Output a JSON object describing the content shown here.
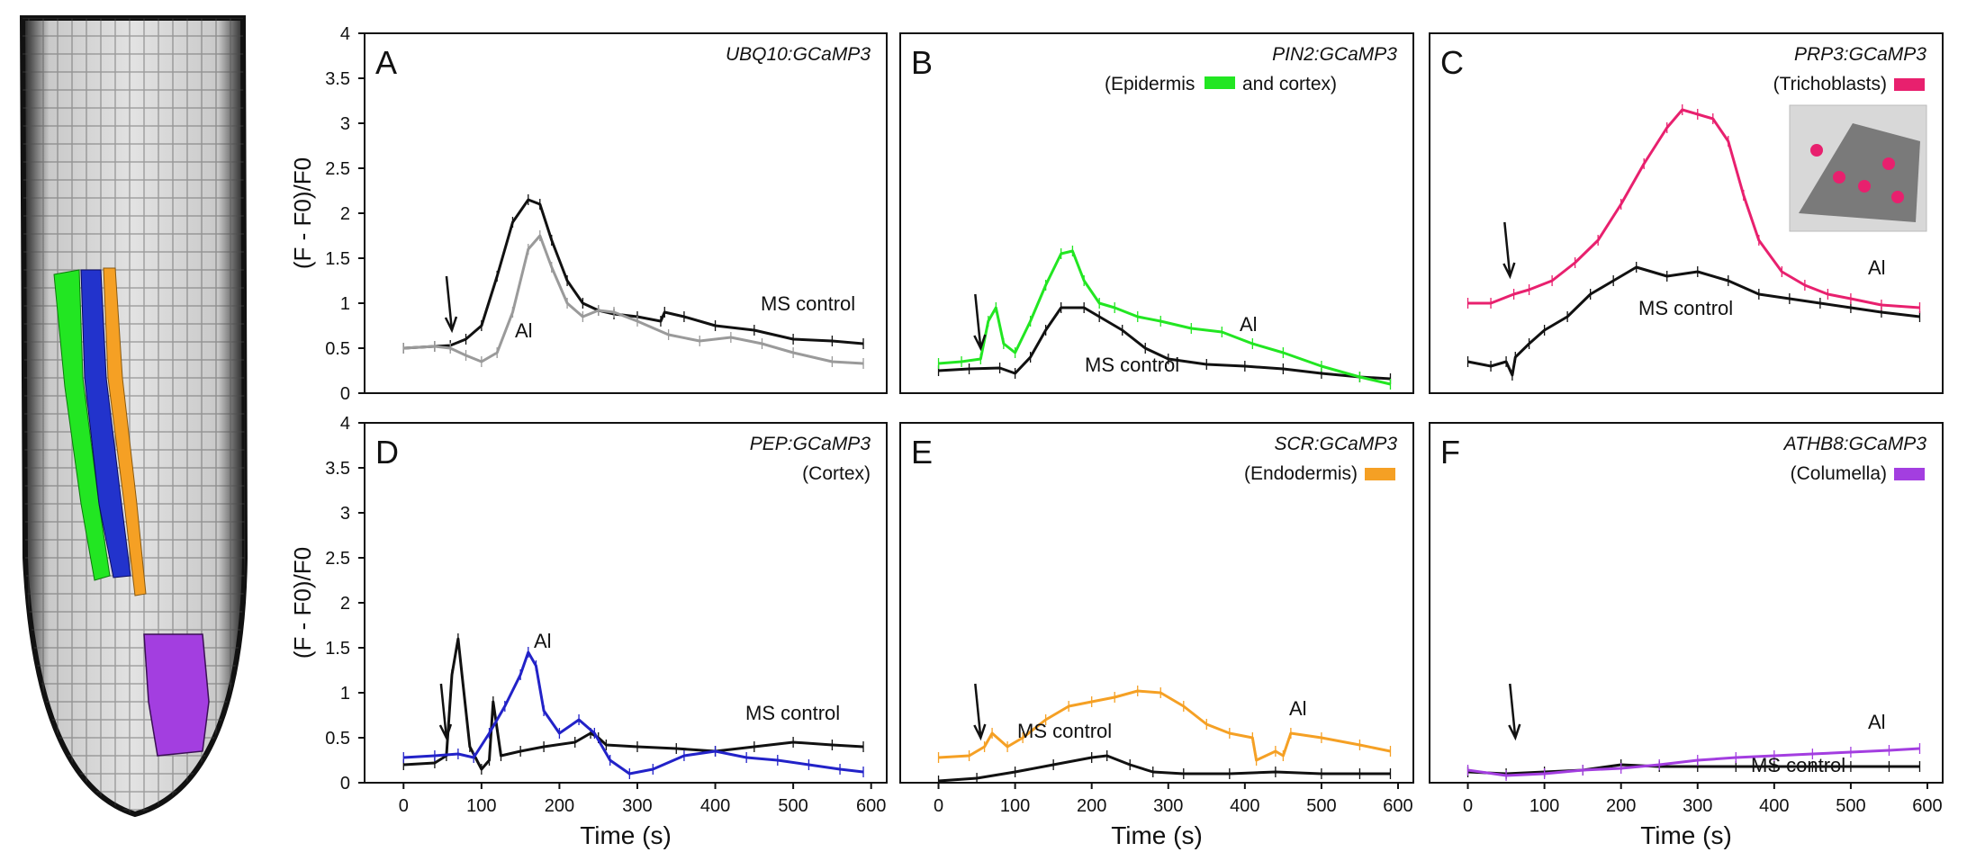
{
  "colors": {
    "black": "#111111",
    "gray": "#9a9a9a",
    "green": "#22e622",
    "pink": "#e8206e",
    "blue": "#2222c8",
    "orange": "#f5a024",
    "purple": "#a33ee0",
    "root_dark": "#222222",
    "root_light": "#d8d8d8"
  },
  "figure": {
    "y_axis_label": "(F - F0)/F0",
    "x_axis_label": "Time (s)",
    "y_ticks": [
      "0",
      "0.5",
      "1",
      "1.5",
      "2",
      "2.5",
      "3",
      "3.5",
      "4"
    ],
    "x_ticks": [
      "0",
      "100",
      "200",
      "300",
      "400",
      "500",
      "600"
    ]
  },
  "root_image": {
    "description_icon": "root-tip-microscopy-icon",
    "tissue_colors": [
      "green",
      "blue",
      "orange",
      "purple"
    ]
  },
  "chart_data": [
    {
      "type": "line",
      "panel": "A",
      "title": "UBQ10:GCaMP3",
      "subtitle": "",
      "xlabel": "Time (s)",
      "ylabel": "(F - F0)/F0",
      "xlim": [
        -50,
        620
      ],
      "ylim": [
        0,
        4
      ],
      "arrow_at": 62,
      "series": [
        {
          "name": "MS control",
          "color_key": "black",
          "label": "MS control",
          "x": [
            0,
            40,
            60,
            80,
            100,
            120,
            140,
            160,
            175,
            190,
            210,
            230,
            250,
            270,
            300,
            330,
            335,
            360,
            400,
            450,
            500,
            550,
            590
          ],
          "y": [
            0.5,
            0.52,
            0.53,
            0.6,
            0.75,
            1.3,
            1.9,
            2.15,
            2.1,
            1.7,
            1.25,
            1.0,
            0.92,
            0.88,
            0.85,
            0.8,
            0.9,
            0.85,
            0.75,
            0.7,
            0.6,
            0.58,
            0.55
          ]
        },
        {
          "name": "Al",
          "color_key": "gray",
          "label": "Al",
          "x": [
            0,
            40,
            60,
            80,
            100,
            120,
            140,
            160,
            175,
            190,
            210,
            230,
            250,
            270,
            300,
            340,
            380,
            420,
            460,
            500,
            550,
            590
          ],
          "y": [
            0.5,
            0.52,
            0.5,
            0.42,
            0.35,
            0.45,
            0.9,
            1.6,
            1.75,
            1.4,
            1.0,
            0.85,
            0.92,
            0.9,
            0.8,
            0.65,
            0.58,
            0.62,
            0.55,
            0.45,
            0.35,
            0.33
          ]
        }
      ]
    },
    {
      "type": "line",
      "panel": "B",
      "title": "PIN2:GCaMP3",
      "subtitle": "(Epidermis",
      "subtitle2": "and cortex)",
      "legend_swatch": "green",
      "xlabel": "Time (s)",
      "ylabel": "(F - F0)/F0",
      "xlim": [
        -50,
        620
      ],
      "ylim": [
        0,
        4
      ],
      "arrow_at": 55,
      "series": [
        {
          "name": "MS control",
          "color_key": "black",
          "label": "MS control",
          "x": [
            0,
            40,
            80,
            100,
            120,
            140,
            160,
            190,
            210,
            240,
            270,
            300,
            350,
            400,
            450,
            500,
            550,
            590
          ],
          "y": [
            0.25,
            0.27,
            0.28,
            0.22,
            0.4,
            0.7,
            0.95,
            0.95,
            0.85,
            0.7,
            0.5,
            0.38,
            0.32,
            0.3,
            0.27,
            0.22,
            0.18,
            0.16
          ]
        },
        {
          "name": "Al",
          "color_key": "green",
          "label": "Al",
          "x": [
            0,
            30,
            55,
            65,
            75,
            85,
            100,
            120,
            140,
            160,
            175,
            190,
            210,
            230,
            260,
            290,
            330,
            370,
            410,
            450,
            500,
            550,
            590
          ],
          "y": [
            0.33,
            0.35,
            0.38,
            0.8,
            0.95,
            0.55,
            0.45,
            0.8,
            1.2,
            1.55,
            1.58,
            1.25,
            1.0,
            0.95,
            0.85,
            0.8,
            0.72,
            0.68,
            0.55,
            0.45,
            0.3,
            0.18,
            0.1
          ]
        }
      ]
    },
    {
      "type": "line",
      "panel": "C",
      "title": "PRP3:GCaMP3",
      "subtitle": "(Trichoblasts)",
      "legend_swatch": "pink",
      "xlabel": "Time (s)",
      "ylabel": "(F - F0)/F0",
      "xlim": [
        -50,
        620
      ],
      "ylim": [
        0,
        4
      ],
      "arrow_at": 55,
      "inset_icon": "trichoblast-inset-icon",
      "series": [
        {
          "name": "MS control",
          "color_key": "black",
          "label": "MS control",
          "x": [
            0,
            30,
            50,
            58,
            62,
            80,
            100,
            130,
            160,
            190,
            220,
            260,
            300,
            340,
            380,
            420,
            460,
            500,
            540,
            590
          ],
          "y": [
            0.35,
            0.3,
            0.35,
            0.2,
            0.4,
            0.55,
            0.7,
            0.85,
            1.1,
            1.25,
            1.4,
            1.3,
            1.35,
            1.25,
            1.1,
            1.05,
            1.0,
            0.95,
            0.9,
            0.85
          ]
        },
        {
          "name": "Al",
          "color_key": "pink",
          "label": "Al",
          "x": [
            0,
            30,
            60,
            80,
            110,
            140,
            170,
            200,
            230,
            260,
            280,
            300,
            320,
            340,
            360,
            380,
            410,
            440,
            470,
            500,
            540,
            590
          ],
          "y": [
            1.0,
            1.0,
            1.1,
            1.15,
            1.25,
            1.45,
            1.7,
            2.1,
            2.55,
            2.95,
            3.15,
            3.1,
            3.05,
            2.8,
            2.2,
            1.7,
            1.35,
            1.2,
            1.1,
            1.05,
            0.98,
            0.95
          ]
        }
      ]
    },
    {
      "type": "line",
      "panel": "D",
      "title": "PEP:GCaMP3",
      "subtitle": "(Cortex)",
      "xlabel": "Time (s)",
      "ylabel": "(F - F0)/F0",
      "xlim": [
        -50,
        620
      ],
      "ylim": [
        0,
        4
      ],
      "arrow_at": 55,
      "series": [
        {
          "name": "MS control",
          "color_key": "black",
          "label": "MS control",
          "x": [
            0,
            40,
            55,
            62,
            70,
            75,
            85,
            100,
            110,
            115,
            125,
            150,
            180,
            220,
            240,
            250,
            260,
            300,
            350,
            400,
            450,
            500,
            550,
            590
          ],
          "y": [
            0.2,
            0.22,
            0.3,
            1.2,
            1.6,
            1.2,
            0.4,
            0.15,
            0.25,
            0.9,
            0.3,
            0.35,
            0.4,
            0.45,
            0.55,
            0.5,
            0.42,
            0.4,
            0.38,
            0.35,
            0.4,
            0.45,
            0.42,
            0.4
          ]
        },
        {
          "name": "Al",
          "color_key": "blue",
          "label": "Al",
          "x": [
            0,
            40,
            70,
            90,
            110,
            130,
            150,
            160,
            170,
            180,
            200,
            225,
            245,
            265,
            290,
            320,
            360,
            400,
            440,
            480,
            520,
            560,
            590
          ],
          "y": [
            0.28,
            0.3,
            0.32,
            0.28,
            0.55,
            0.85,
            1.2,
            1.45,
            1.3,
            0.8,
            0.55,
            0.7,
            0.55,
            0.25,
            0.1,
            0.15,
            0.3,
            0.35,
            0.28,
            0.25,
            0.2,
            0.15,
            0.12
          ]
        }
      ]
    },
    {
      "type": "line",
      "panel": "E",
      "title": "SCR:GCaMP3",
      "subtitle": "(Endodermis)",
      "legend_swatch": "orange",
      "xlabel": "Time (s)",
      "ylabel": "(F - F0)/F0",
      "xlim": [
        -50,
        620
      ],
      "ylim": [
        0,
        4
      ],
      "arrow_at": 55,
      "series": [
        {
          "name": "MS control",
          "color_key": "black",
          "label": "MS control",
          "x": [
            0,
            50,
            100,
            150,
            200,
            220,
            250,
            280,
            320,
            380,
            440,
            500,
            550,
            590
          ],
          "y": [
            0.02,
            0.05,
            0.12,
            0.2,
            0.28,
            0.3,
            0.2,
            0.12,
            0.1,
            0.1,
            0.12,
            0.1,
            0.1,
            0.1
          ]
        },
        {
          "name": "Al",
          "color_key": "orange",
          "label": "Al",
          "x": [
            0,
            40,
            60,
            70,
            90,
            110,
            140,
            170,
            200,
            230,
            260,
            290,
            320,
            350,
            380,
            410,
            415,
            440,
            450,
            460,
            500,
            550,
            590
          ],
          "y": [
            0.28,
            0.3,
            0.4,
            0.55,
            0.4,
            0.5,
            0.7,
            0.85,
            0.9,
            0.95,
            1.02,
            1.0,
            0.85,
            0.65,
            0.55,
            0.5,
            0.25,
            0.35,
            0.3,
            0.55,
            0.5,
            0.42,
            0.35
          ]
        }
      ]
    },
    {
      "type": "line",
      "panel": "F",
      "title": "ATHB8:GCaMP3",
      "subtitle": "(Columella)",
      "legend_swatch": "purple",
      "xlabel": "Time (s)",
      "ylabel": "(F - F0)/F0",
      "xlim": [
        -50,
        620
      ],
      "ylim": [
        0,
        4
      ],
      "arrow_at": 62,
      "series": [
        {
          "name": "MS control",
          "color_key": "black",
          "label": "MS control",
          "x": [
            0,
            50,
            100,
            150,
            200,
            250,
            300,
            350,
            400,
            450,
            500,
            550,
            590
          ],
          "y": [
            0.12,
            0.1,
            0.12,
            0.14,
            0.2,
            0.18,
            0.18,
            0.18,
            0.18,
            0.18,
            0.18,
            0.18,
            0.18
          ]
        },
        {
          "name": "Al",
          "color_key": "purple",
          "label": "Al",
          "x": [
            0,
            50,
            100,
            150,
            200,
            250,
            300,
            350,
            400,
            450,
            500,
            550,
            590
          ],
          "y": [
            0.14,
            0.08,
            0.1,
            0.14,
            0.16,
            0.2,
            0.25,
            0.28,
            0.3,
            0.32,
            0.34,
            0.36,
            0.38
          ]
        }
      ]
    }
  ]
}
